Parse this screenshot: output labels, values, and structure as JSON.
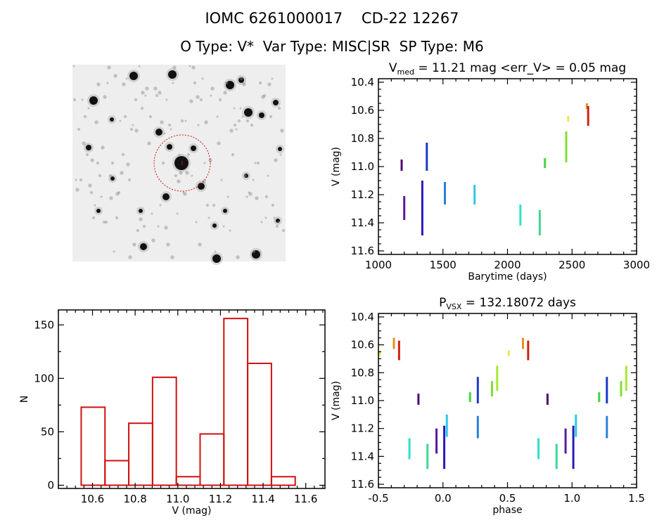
{
  "header": {
    "title": "IOMC 6261000017    CD-22 12267",
    "subtitle": "O Type: V*  Var Type: MISC|SR  SP Type: M6"
  },
  "chart_data": [
    {
      "id": "lightcurve",
      "type": "scatter",
      "title_main": "V",
      "title_sub": "med",
      "title_rest": " = 11.21 mag <err_V> = 0.05 mag",
      "xlabel": "Barytime (days)",
      "ylabel": "V (mag)",
      "xlim": [
        1000,
        3000
      ],
      "ylim": [
        11.625,
        10.375
      ],
      "y_reversed": true,
      "xticks": [
        1000,
        1500,
        2000,
        2500,
        3000
      ],
      "xtick_labels": [
        "1000",
        "1500",
        "2000",
        "2500",
        "3000"
      ],
      "yticks": [
        10.4,
        10.6,
        10.8,
        11.0,
        11.2,
        11.4,
        11.6
      ],
      "ytick_labels": [
        "10.4",
        "10.6",
        "10.8",
        "11.0",
        "11.2",
        "11.4",
        "11.6"
      ],
      "clusters": [
        {
          "x": 1180,
          "ymin": 10.95,
          "ymax": 11.03,
          "color": "#4b0a6e"
        },
        {
          "x": 1200,
          "ymin": 11.21,
          "ymax": 11.38,
          "color": "#5a1aa0"
        },
        {
          "x": 1340,
          "ymin": 11.1,
          "ymax": 11.49,
          "color": "#2a1ab8"
        },
        {
          "x": 1375,
          "ymin": 10.83,
          "ymax": 11.03,
          "color": "#1a3ac8"
        },
        {
          "x": 1515,
          "ymin": 11.11,
          "ymax": 11.27,
          "color": "#2a80d8"
        },
        {
          "x": 1745,
          "ymin": 11.13,
          "ymax": 11.27,
          "color": "#30c8e8"
        },
        {
          "x": 2100,
          "ymin": 11.27,
          "ymax": 11.42,
          "color": "#30e0c8"
        },
        {
          "x": 2250,
          "ymin": 11.31,
          "ymax": 11.49,
          "color": "#40d890"
        },
        {
          "x": 2290,
          "ymin": 10.94,
          "ymax": 11.01,
          "color": "#40d840"
        },
        {
          "x": 2455,
          "ymin": 10.75,
          "ymax": 10.97,
          "color": "#80e030"
        },
        {
          "x": 2470,
          "ymin": 10.64,
          "ymax": 10.68,
          "color": "#e8e850"
        },
        {
          "x": 2615,
          "ymin": 10.55,
          "ymax": 10.59,
          "color": "#e89020"
        },
        {
          "x": 2625,
          "ymin": 10.57,
          "ymax": 10.71,
          "color": "#d02010"
        }
      ]
    },
    {
      "id": "histogram",
      "type": "bar",
      "xlabel": "V (mag)",
      "ylabel": "N",
      "xlim": [
        10.44,
        11.69
      ],
      "ylim": [
        -3,
        164
      ],
      "xticks": [
        10.6,
        10.8,
        11.0,
        11.2,
        11.4,
        11.6
      ],
      "xtick_labels": [
        "10.6",
        "10.8",
        "11.0",
        "11.2",
        "11.4",
        "11.6"
      ],
      "yticks": [
        0,
        50,
        100,
        150
      ],
      "ytick_labels": [
        "0",
        "50",
        "100",
        "150"
      ],
      "bin_start": 10.547,
      "bin_width": 0.1115,
      "counts": [
        73,
        23,
        58,
        101,
        8,
        48,
        156,
        114,
        8
      ],
      "color": "#d01010"
    },
    {
      "id": "phased",
      "type": "scatter",
      "title_main": "P",
      "title_sub": "VSX",
      "title_rest": " = 132.18072 days",
      "xlabel": "phase",
      "ylabel": "V (mag)",
      "xlim": [
        -0.5,
        1.5
      ],
      "ylim": [
        11.625,
        10.375
      ],
      "y_reversed": true,
      "xticks": [
        -0.5,
        0.0,
        0.5,
        1.0,
        1.5
      ],
      "xtick_labels": [
        "-0.5",
        "0.0",
        "0.5",
        "1.0",
        "1.5"
      ],
      "yticks": [
        10.4,
        10.6,
        10.8,
        11.0,
        11.2,
        11.4,
        11.6
      ],
      "ytick_labels": [
        "10.4",
        "10.6",
        "10.8",
        "11.0",
        "11.2",
        "11.4",
        "11.6"
      ],
      "clusters": [
        {
          "phase": 0.81,
          "ymin": 10.95,
          "ymax": 11.03,
          "color": "#4b0a6e"
        },
        {
          "phase": 0.95,
          "ymin": 11.2,
          "ymax": 11.38,
          "color": "#5a1aa0"
        },
        {
          "phase": 0.01,
          "ymin": 11.18,
          "ymax": 11.49,
          "color": "#2a1ab8"
        },
        {
          "phase": 0.27,
          "ymin": 10.83,
          "ymax": 11.02,
          "color": "#1a3ac8"
        },
        {
          "phase": 0.27,
          "ymin": 11.11,
          "ymax": 11.27,
          "color": "#2a80d8"
        },
        {
          "phase": 0.03,
          "ymin": 11.1,
          "ymax": 11.26,
          "color": "#30c8e8"
        },
        {
          "phase": 0.74,
          "ymin": 11.27,
          "ymax": 11.42,
          "color": "#30e0c8"
        },
        {
          "phase": 0.88,
          "ymin": 11.31,
          "ymax": 11.49,
          "color": "#40d890"
        },
        {
          "phase": 0.21,
          "ymin": 10.94,
          "ymax": 11.01,
          "color": "#40d840"
        },
        {
          "phase": 0.38,
          "ymin": 10.86,
          "ymax": 10.97,
          "color": "#80e030"
        },
        {
          "phase": 0.42,
          "ymin": 10.75,
          "ymax": 10.93,
          "color": "#a8e830"
        },
        {
          "phase": 0.51,
          "ymin": 10.64,
          "ymax": 10.68,
          "color": "#e8e850"
        },
        {
          "phase": 0.62,
          "ymin": 10.55,
          "ymax": 10.63,
          "color": "#e89020"
        },
        {
          "phase": 0.66,
          "ymin": 10.57,
          "ymax": 10.71,
          "color": "#d02010"
        }
      ]
    }
  ]
}
